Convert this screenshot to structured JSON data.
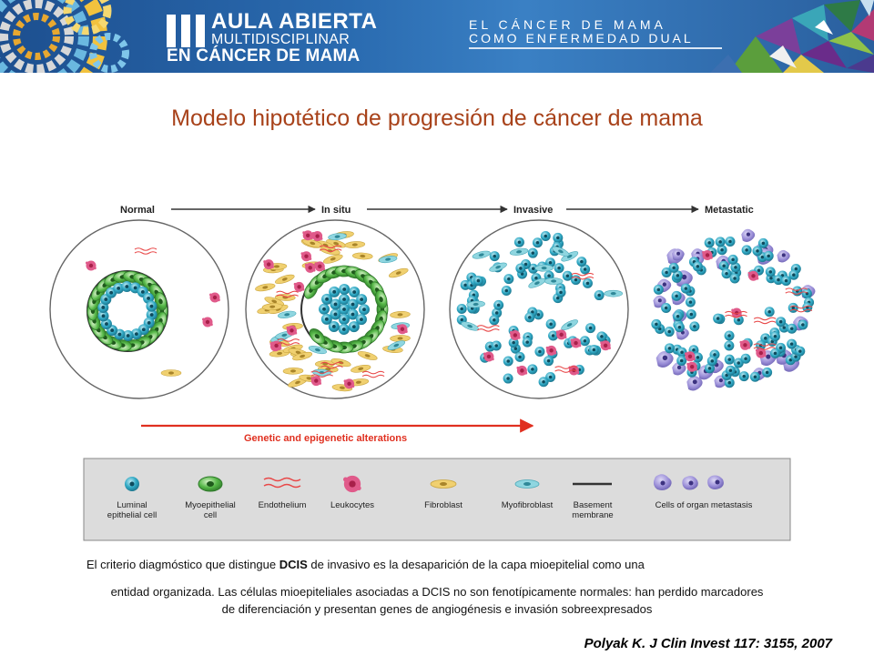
{
  "banner": {
    "logo_lines": [
      "AULA ABIERTA",
      "MULTIDISCIPLINAR",
      "EN CÁNCER DE MAMA"
    ],
    "subtitle_lines": [
      "EL CÁNCER DE MAMA",
      "COMO ENFERMEDAD DUAL"
    ],
    "logo_icon": "roman-numeral-three-icon",
    "colors": {
      "banner_blue": "#2a6bb0",
      "title_orange": "#a8421a"
    }
  },
  "title": "Modelo hipotético de progresión de cáncer de mama",
  "diagram": {
    "stages": [
      "Normal",
      "In situ",
      "Invasive",
      "Metastatic"
    ],
    "alteration_label": "Genetic and epigenetic alterations",
    "legend": [
      {
        "label_lines": [
          "Luminal",
          "epithelial cell"
        ],
        "icon": "luminal-cell-icon"
      },
      {
        "label_lines": [
          "Myoepithelial",
          "cell"
        ],
        "icon": "myoepithelial-cell-icon"
      },
      {
        "label_lines": [
          "Endothelium"
        ],
        "icon": "endothelium-icon"
      },
      {
        "label_lines": [
          "Leukocytes"
        ],
        "icon": "leukocyte-icon"
      },
      {
        "label_lines": [
          "Fibroblast"
        ],
        "icon": "fibroblast-icon"
      },
      {
        "label_lines": [
          "Myofibroblast"
        ],
        "icon": "myofibroblast-icon"
      },
      {
        "label_lines": [
          "Basement",
          "membrane"
        ],
        "icon": "basement-membrane-icon"
      },
      {
        "label_lines": [
          "Cells of organ metastasis"
        ],
        "icon": "metastasis-cells-icon"
      }
    ],
    "colors": {
      "luminal": "#2fa8c4",
      "myoepithelial": "#56b848",
      "leukocyte": "#e05a8a",
      "fibroblast": "#f0d070",
      "myofibroblast": "#8fd6e0",
      "metastasis": "#9b8fd8",
      "arrow_red": "#e03020"
    }
  },
  "caption": {
    "line1_before": "El criterio diagmóstico que distingue ",
    "line1_bold": "DCIS",
    "line1_after": " de invasivo es la desaparición de la capa mioepitelial como una",
    "line2": "entidad organizada. Las células mioepiteliales asociadas a DCIS no son fenotípicamente normales: han perdido marcadores",
    "line3": "de diferenciación y presentan genes de angiogénesis e invasión sobreexpresados"
  },
  "citation": "Polyak K. J Clin Invest 117: 3155, 2007"
}
